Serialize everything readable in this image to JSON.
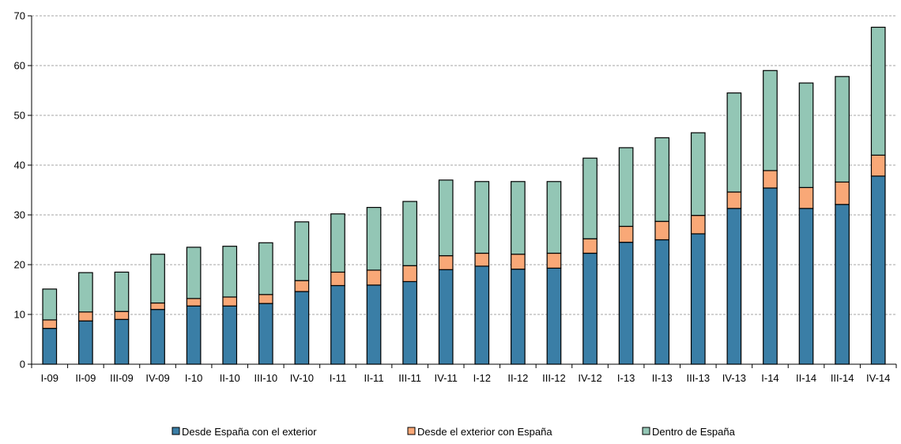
{
  "chart_data": {
    "type": "bar",
    "stacked": true,
    "categories": [
      "I-09",
      "II-09",
      "III-09",
      "IV-09",
      "I-10",
      "II-10",
      "III-10",
      "IV-10",
      "I-11",
      "II-11",
      "III-11",
      "IV-11",
      "I-12",
      "II-12",
      "III-12",
      "IV-12",
      "I-13",
      "II-13",
      "III-13",
      "IV-13",
      "I-14",
      "II-14",
      "III-14",
      "IV-14"
    ],
    "series": [
      {
        "name": "Desde España con el exterior",
        "color": "#3a7ea6",
        "values": [
          7.2,
          8.7,
          9.0,
          11.0,
          11.7,
          11.7,
          12.2,
          14.6,
          15.8,
          15.9,
          16.6,
          19.0,
          19.7,
          19.1,
          19.3,
          22.3,
          24.5,
          25.0,
          26.2,
          31.3,
          35.4,
          31.3,
          32.1,
          37.8
        ]
      },
      {
        "name": "Desde el exterior con España",
        "color": "#f9a877",
        "values": [
          1.7,
          1.8,
          1.6,
          1.3,
          1.5,
          1.8,
          1.8,
          2.2,
          2.7,
          3.0,
          3.2,
          2.8,
          2.6,
          3.0,
          3.0,
          2.9,
          3.2,
          3.7,
          3.7,
          3.3,
          3.5,
          4.2,
          4.5,
          4.2
        ]
      },
      {
        "name": "Dentro de España",
        "color": "#93c6b5",
        "values": [
          6.2,
          7.9,
          7.9,
          9.8,
          10.3,
          10.2,
          10.4,
          11.8,
          11.7,
          12.6,
          12.9,
          15.2,
          14.4,
          14.6,
          14.4,
          16.2,
          15.8,
          16.8,
          16.6,
          19.9,
          20.1,
          21.0,
          21.2,
          25.7
        ]
      }
    ],
    "yticks": [
      "0",
      "10",
      "20",
      "30",
      "40",
      "50",
      "60",
      "70"
    ],
    "ylim": [
      0,
      70
    ],
    "grid": true,
    "legend_position": "bottom"
  }
}
